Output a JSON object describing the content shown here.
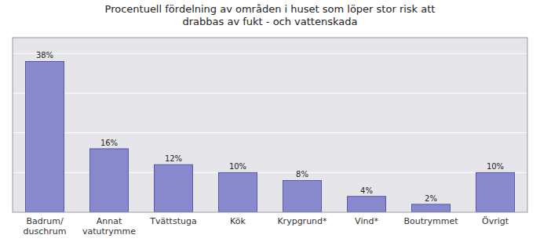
{
  "chart_data": {
    "type": "bar",
    "title": "Procentuell fördelning av områden i huset som löper stor risk att\ndrabbas av fukt - och vattenskada",
    "categories": [
      "Badrum/\nduschrum",
      "Annat\nvatutrymme",
      "Tvättstuga",
      "Kök",
      "Krypgrund*",
      "Vind*",
      "Boutrymmet",
      "Övrigt"
    ],
    "values": [
      38,
      16,
      12,
      10,
      8,
      4,
      2,
      10
    ],
    "value_labels": [
      "38%",
      "16%",
      "12%",
      "10%",
      "8%",
      "4%",
      "2%",
      "10%"
    ],
    "color": "#8888cc",
    "ylim": [
      0,
      44
    ],
    "yticks": [
      0,
      10,
      20,
      30,
      40
    ],
    "grid": true,
    "data_labels": true,
    "tick_labels": "x"
  }
}
